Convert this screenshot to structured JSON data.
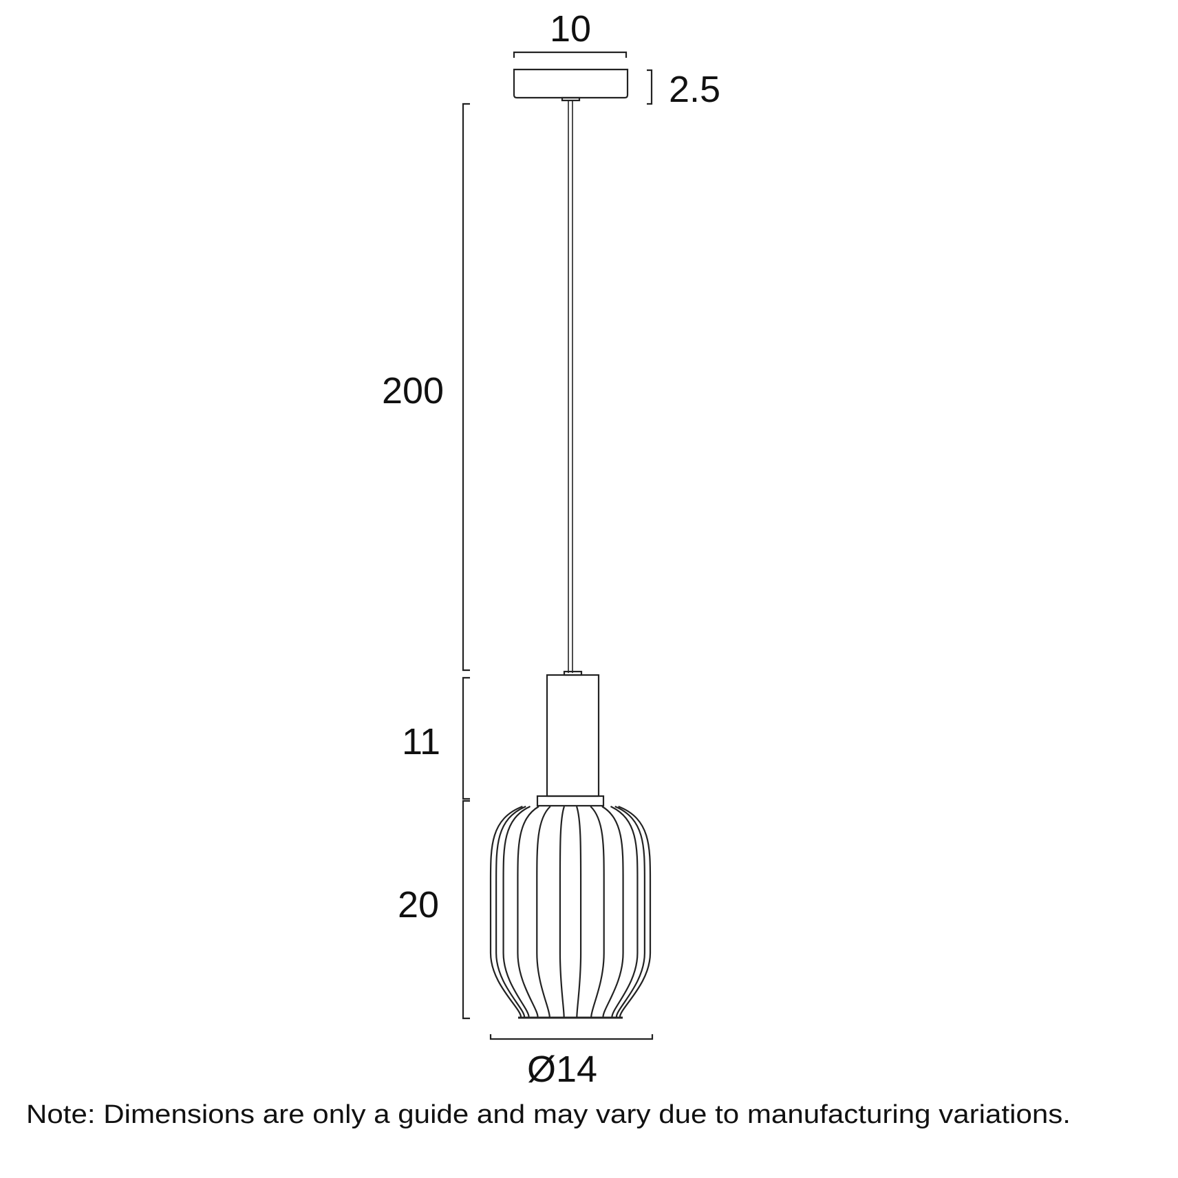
{
  "dimensions": {
    "canopy_width": "10",
    "canopy_height": "2.5",
    "cord_length": "200",
    "holder_height": "11",
    "shade_height": "20",
    "shade_diameter": "Ø14"
  },
  "note": "Note: Dimensions are only a guide and may vary due to manufacturing variations.",
  "colors": {
    "line": "#222222",
    "background": "#ffffff"
  }
}
